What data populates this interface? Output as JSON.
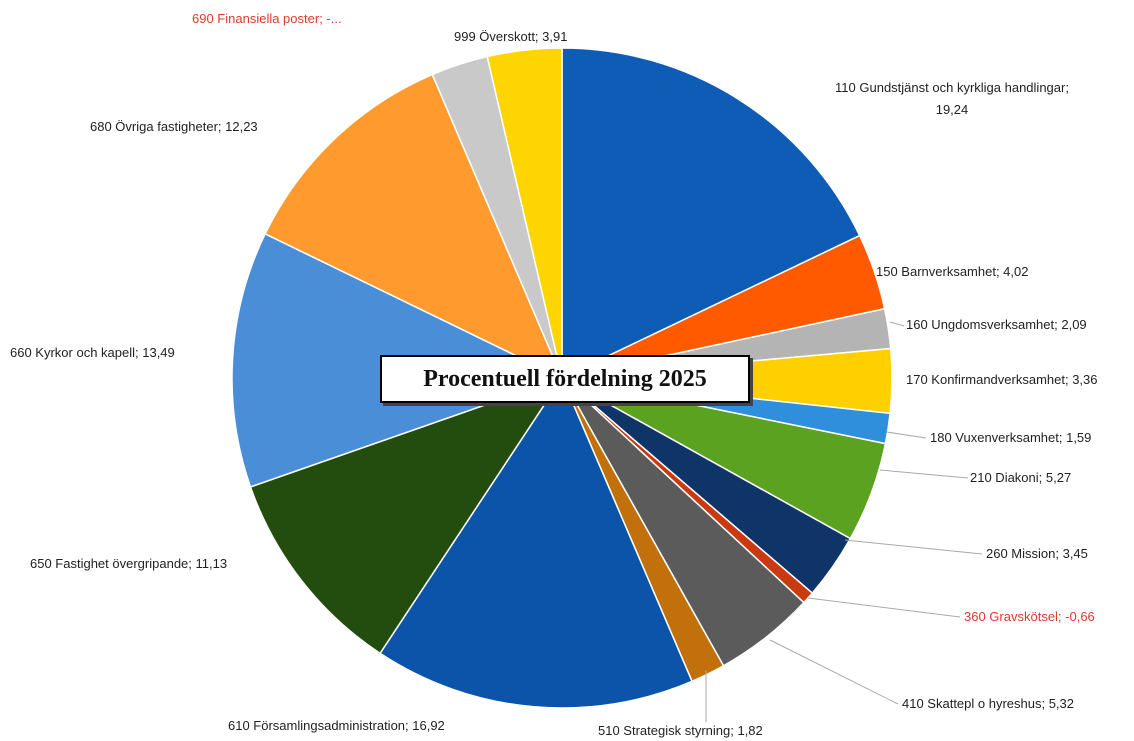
{
  "chart_data": {
    "type": "pie",
    "title": "Procentuell fördelning 2025",
    "start_angle_deg": 0,
    "direction": "clockwise",
    "slices": [
      {
        "label": "110 Gundstjänst och kyrkliga handlingar; 19,24",
        "label_lines": [
          "110 Gundstjänst och kyrkliga handlingar;",
          "19,24"
        ],
        "category": "110 Gundstjänst och kyrkliga handlingar",
        "value": 19.24,
        "color": "#0e5cb6"
      },
      {
        "label": "150 Barnverksamhet; 4,02",
        "category": "150 Barnverksamhet",
        "value": 4.02,
        "color": "#ff5a00"
      },
      {
        "label": "160 Ungdomsverksamhet; 2,09",
        "category": "160 Ungdomsverksamhet",
        "value": 2.09,
        "color": "#b4b4b4"
      },
      {
        "label": "170 Konfirmandverksamhet; 3,36",
        "category": "170 Konfirmandverksamhet",
        "value": 3.36,
        "color": "#ffd000"
      },
      {
        "label": "180 Vuxenverksamhet; 1,59",
        "category": "180 Vuxenverksamhet",
        "value": 1.59,
        "color": "#2f8fdc"
      },
      {
        "label": "210 Diakoni; 5,27",
        "category": "210 Diakoni",
        "value": 5.27,
        "color": "#5aa21f"
      },
      {
        "label": "260 Mission; 3,45",
        "category": "260 Mission",
        "value": 3.45,
        "color": "#0f3467"
      },
      {
        "label": "360 Gravskötsel; -0,66",
        "category": "360 Gravskötsel",
        "value": -0.66,
        "color": "#c93a10",
        "negative": true
      },
      {
        "label": "410 Skattepl o hyreshus; 5,32",
        "category": "410 Skattepl o hyreshus",
        "value": 5.32,
        "color": "#5b5b5b"
      },
      {
        "label": "510 Strategisk styrning; 1,82",
        "category": "510 Strategisk styrning",
        "value": 1.82,
        "color": "#c2700c"
      },
      {
        "label": "610 Församlingsadministration; 16,92",
        "category": "610 Församlingsadministration",
        "value": 16.92,
        "color": "#0c54aa"
      },
      {
        "label": "650 Fastighet övergripande; 11,13",
        "category": "650 Fastighet övergripande",
        "value": 11.13,
        "color": "#224d0f"
      },
      {
        "label": "660 Kyrkor och kapell; 13,49",
        "category": "660 Kyrkor och kapell",
        "value": 13.49,
        "color": "#4a8ed8"
      },
      {
        "label": "680 Övriga fastigheter; 12,23",
        "category": "680 Övriga fastigheter",
        "value": 12.23,
        "color": "#ff9a2e"
      },
      {
        "label": "690 Finansiella poster; -...",
        "category": "690 Finansiella poster",
        "value": -3.0,
        "color": "#c9c9c9",
        "negative": true
      },
      {
        "label": "999 Överskott; 3,91",
        "category": "999 Överskott",
        "value": 3.91,
        "color": "#ffd500"
      }
    ]
  }
}
